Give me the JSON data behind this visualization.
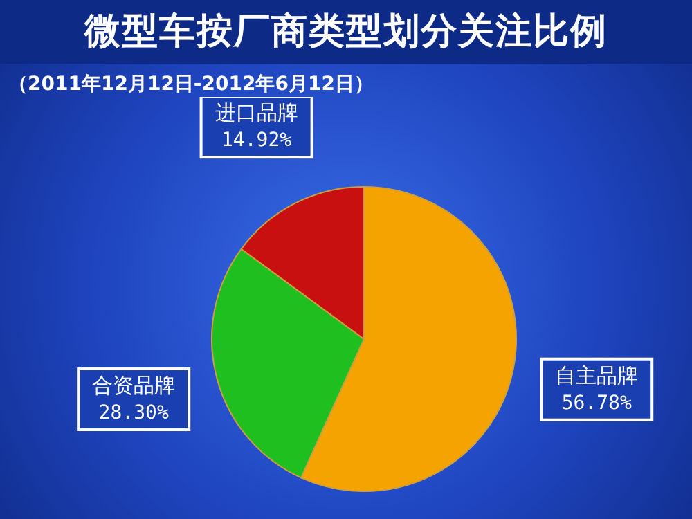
{
  "chart_data": {
    "type": "pie",
    "title": "微型车按厂商类型划分关注比例",
    "subtitle": "（2011年12月12日-2012年6月12日）",
    "categories": [
      "自主品牌",
      "合资品牌",
      "进口品牌"
    ],
    "values": [
      56.78,
      28.3,
      14.92
    ],
    "colors": [
      "#f5a300",
      "#1fbf1f",
      "#c81010"
    ],
    "value_labels": [
      "56.78%",
      "28.30%",
      "14.92%"
    ],
    "legend": false
  }
}
